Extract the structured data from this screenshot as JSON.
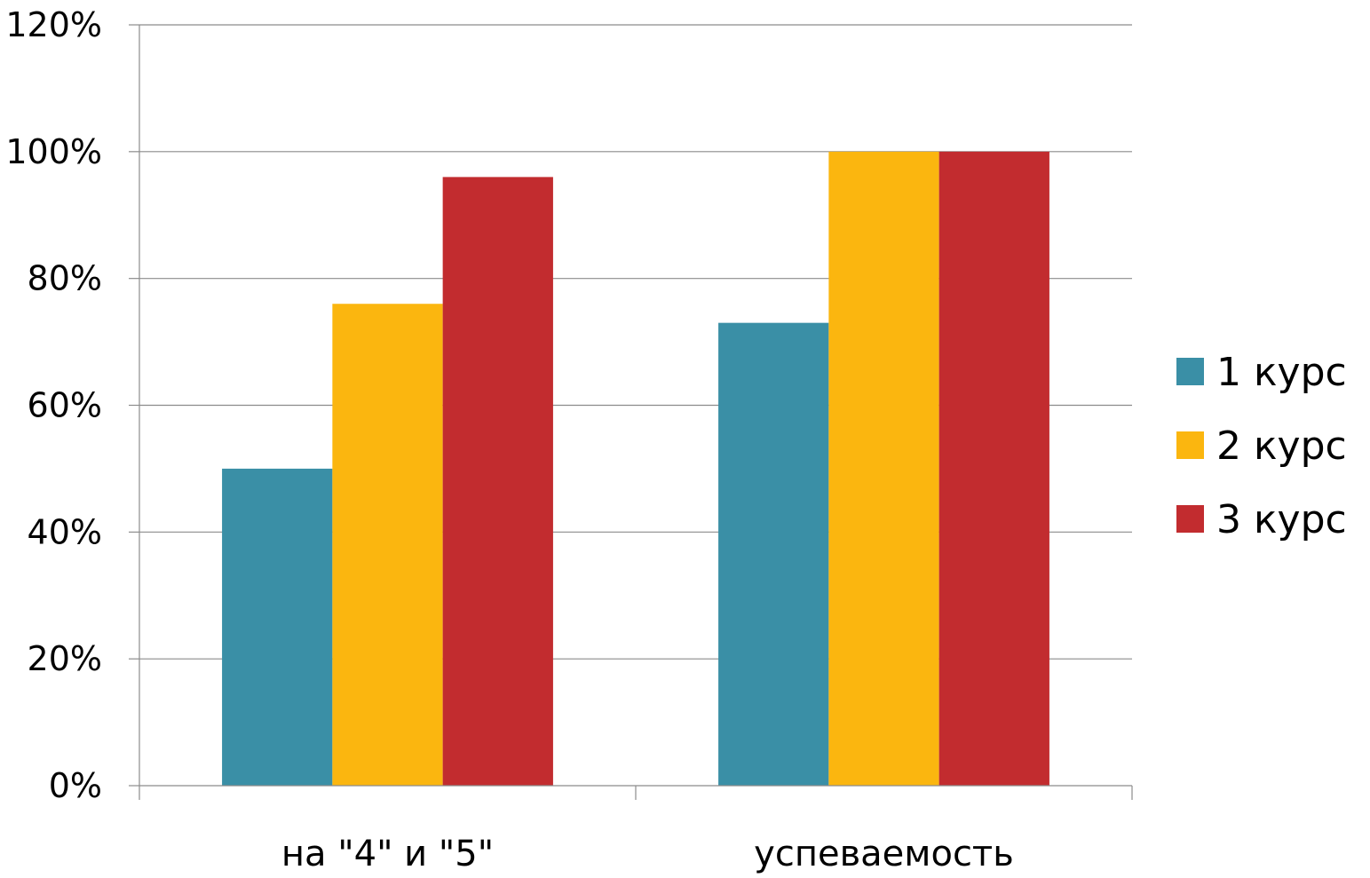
{
  "chart_data": {
    "type": "bar",
    "title": "",
    "xlabel": "",
    "ylabel": "",
    "categories": [
      "на \"4\" и \"5\"",
      "успеваемость"
    ],
    "series": [
      {
        "name": "1 курс",
        "values": [
          50,
          73
        ],
        "color": "#3A8FA6"
      },
      {
        "name": "2 курс",
        "values": [
          76,
          100
        ],
        "color": "#FBB60F"
      },
      {
        "name": "3 курс",
        "values": [
          96,
          100
        ],
        "color": "#C22C2F"
      }
    ],
    "ylim": [
      0,
      120
    ],
    "yticks": [
      0,
      20,
      40,
      60,
      80,
      100,
      120
    ],
    "ytick_suffix": "%",
    "ytick_labels": [
      "0%",
      "20%",
      "40%",
      "60%",
      "80%",
      "100%",
      "120%"
    ],
    "grid": true,
    "legend_position": "right"
  }
}
